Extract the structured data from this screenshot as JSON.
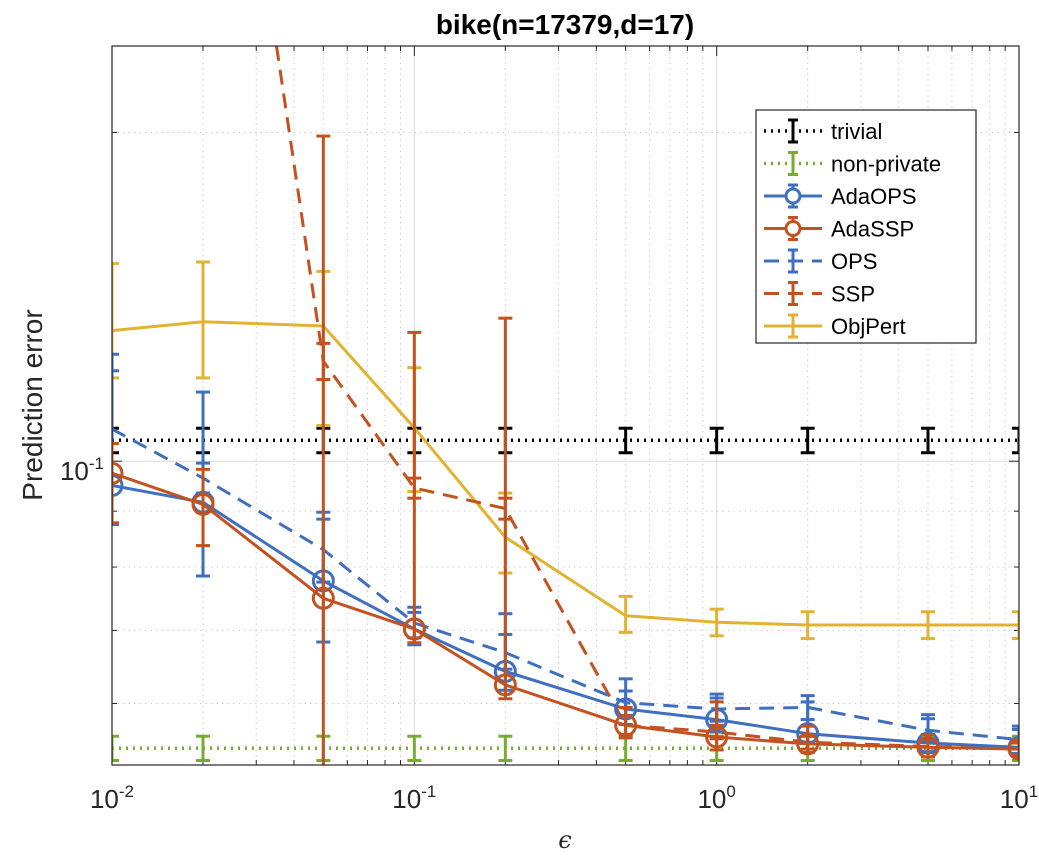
{
  "chart_data": {
    "type": "line",
    "title": "bike(n=17379,d=17)",
    "xlabel": "ϵ",
    "ylabel": "Prediction error",
    "xscale": "log",
    "yscale": "log",
    "xlim": [
      0.01,
      10
    ],
    "ylim": [
      0.0527,
      0.24
    ],
    "grid": true,
    "legend_position": "top-right",
    "x_ticks": [
      {
        "base": "10",
        "exp": "-2",
        "value": 0.01
      },
      {
        "base": "10",
        "exp": "-1",
        "value": 0.1
      },
      {
        "base": "10",
        "exp": "0",
        "value": 1
      },
      {
        "base": "10",
        "exp": "1",
        "value": 10
      }
    ],
    "y_ticks": [
      {
        "base": "10",
        "exp": "-1",
        "value": 0.1
      }
    ],
    "x": [
      0.01,
      0.02,
      0.05,
      0.1,
      0.2,
      0.5,
      1,
      2,
      5,
      10
    ],
    "series": [
      {
        "name": "trivial",
        "color": "#000000",
        "style": "dotted",
        "marker": "none",
        "x": [
          0.01,
          0.02,
          0.05,
          0.1,
          0.2,
          0.5,
          1,
          2,
          5,
          10
        ],
        "values": [
          0.1045,
          0.1045,
          0.1045,
          0.1045,
          0.1045,
          0.1045,
          0.1045,
          0.1045,
          0.1045,
          0.1045
        ],
        "err_low": [
          0.1018,
          0.1018,
          0.1018,
          0.1018,
          0.1018,
          0.1018,
          0.1018,
          0.1018,
          0.1018,
          0.1018
        ],
        "err_high": [
          0.1072,
          0.1072,
          0.1072,
          0.1072,
          0.1072,
          0.1072,
          0.1072,
          0.1072,
          0.1072,
          0.1072
        ]
      },
      {
        "name": "non-private",
        "color": "#77ac30",
        "style": "dotted",
        "marker": "none",
        "x": [
          0.01,
          0.02,
          0.05,
          0.1,
          0.2,
          0.5,
          1,
          2,
          5,
          10
        ],
        "values": [
          0.0546,
          0.0546,
          0.0546,
          0.0546,
          0.0546,
          0.0546,
          0.0546,
          0.0546,
          0.0546,
          0.0546
        ],
        "err_low": [
          0.0532,
          0.0532,
          0.0532,
          0.0532,
          0.0532,
          0.0532,
          0.0532,
          0.0532,
          0.0532,
          0.0532
        ],
        "err_high": [
          0.056,
          0.056,
          0.056,
          0.056,
          0.056,
          0.056,
          0.056,
          0.056,
          0.056,
          0.056
        ]
      },
      {
        "name": "AdaOPS",
        "color": "#3f6fbf",
        "style": "solid",
        "marker": "circle",
        "x": [
          0.01,
          0.02,
          0.05,
          0.1,
          0.2,
          0.5,
          1,
          2,
          5,
          10
        ],
        "values": [
          0.095,
          0.0917,
          0.0777,
          0.0702,
          0.0642,
          0.0593,
          0.058,
          0.0563,
          0.0552,
          0.0547
        ],
        "err_low": [
          0.0875,
          0.0785,
          0.0683,
          0.0679,
          0.0617,
          0.0574,
          0.0565,
          0.0553,
          0.0542,
          0.054
        ],
        "err_high": [
          0.1253,
          0.1157,
          0.0898,
          0.0727,
          0.0725,
          0.0632,
          0.0612,
          0.0602,
          0.0586,
          0.0572
        ]
      },
      {
        "name": "AdaSSP",
        "color": "#c4521f",
        "style": "solid",
        "marker": "circle",
        "x": [
          0.01,
          0.02,
          0.05,
          0.1,
          0.2,
          0.5,
          1,
          2,
          5,
          10
        ],
        "values": [
          0.0975,
          0.0913,
          0.0749,
          0.0702,
          0.0624,
          0.0573,
          0.0559,
          0.0551,
          0.0547,
          0.0545
        ],
        "err_low": [
          0.0878,
          0.0837,
          0.0502,
          0.0682,
          0.0606,
          0.0558,
          0.0544,
          0.0541,
          0.0536,
          0.0538
        ],
        "err_high": [
          0.1038,
          0.0983,
          0.1985,
          0.1312,
          0.1352,
          0.0595,
          0.0602,
          0.0572,
          0.0562,
          0.0553
        ]
      },
      {
        "name": "OPS",
        "color": "#3f6fbf",
        "style": "dashed",
        "marker": "none",
        "x": [
          0.01,
          0.02,
          0.05,
          0.1,
          0.2,
          0.5,
          1,
          2,
          5,
          10
        ],
        "values": [
          0.107,
          0.0965,
          0.083,
          0.0711,
          0.0668,
          0.0601,
          0.0593,
          0.0595,
          0.0567,
          0.0556
        ],
        "err_low": [
          0.0878,
          0.0935,
          0.0775,
          0.0689,
          0.0645,
          0.0585,
          0.0578,
          0.058,
          0.0553,
          0.0545
        ],
        "err_high": [
          0.121,
          0.0996,
          0.0885,
          0.0735,
          0.0694,
          0.0616,
          0.0607,
          0.061,
          0.0581,
          0.0568
        ]
      },
      {
        "name": "SSP",
        "color": "#c4521f",
        "style": "dashed",
        "marker": "none",
        "x": [
          0.035,
          0.05,
          0.1,
          0.2,
          0.5,
          1,
          2,
          5,
          10
        ],
        "values": [
          0.24,
          0.1235,
          0.0945,
          0.0905,
          0.0573,
          0.0565,
          0.0553,
          0.0548,
          0.0546
        ],
        "err_low": [
          null,
          0.1188,
          0.0925,
          0.0885,
          0.0562,
          0.0557,
          0.0545,
          0.0541,
          0.054
        ],
        "err_high": [
          null,
          0.1282,
          0.0965,
          0.0925,
          0.0585,
          0.0573,
          0.056,
          0.0555,
          0.0552
        ]
      },
      {
        "name": "ObjPert",
        "color": "#e0b330",
        "style": "solid",
        "marker": "none",
        "x": [
          0.01,
          0.02,
          0.05,
          0.1,
          0.2,
          0.5,
          1,
          2,
          5,
          10
        ],
        "values": [
          0.1317,
          0.1342,
          0.133,
          0.1073,
          0.0852,
          0.0722,
          0.0712,
          0.0708,
          0.0708,
          0.0708
        ],
        "err_low": [
          0.1192,
          0.1192,
          0.1078,
          0.0938,
          0.079,
          0.0697,
          0.0692,
          0.0688,
          0.0688,
          0.0688
        ],
        "err_high": [
          0.1517,
          0.1522,
          0.1492,
          0.1218,
          0.0935,
          0.0752,
          0.0732,
          0.0728,
          0.0728,
          0.0728
        ]
      }
    ]
  }
}
